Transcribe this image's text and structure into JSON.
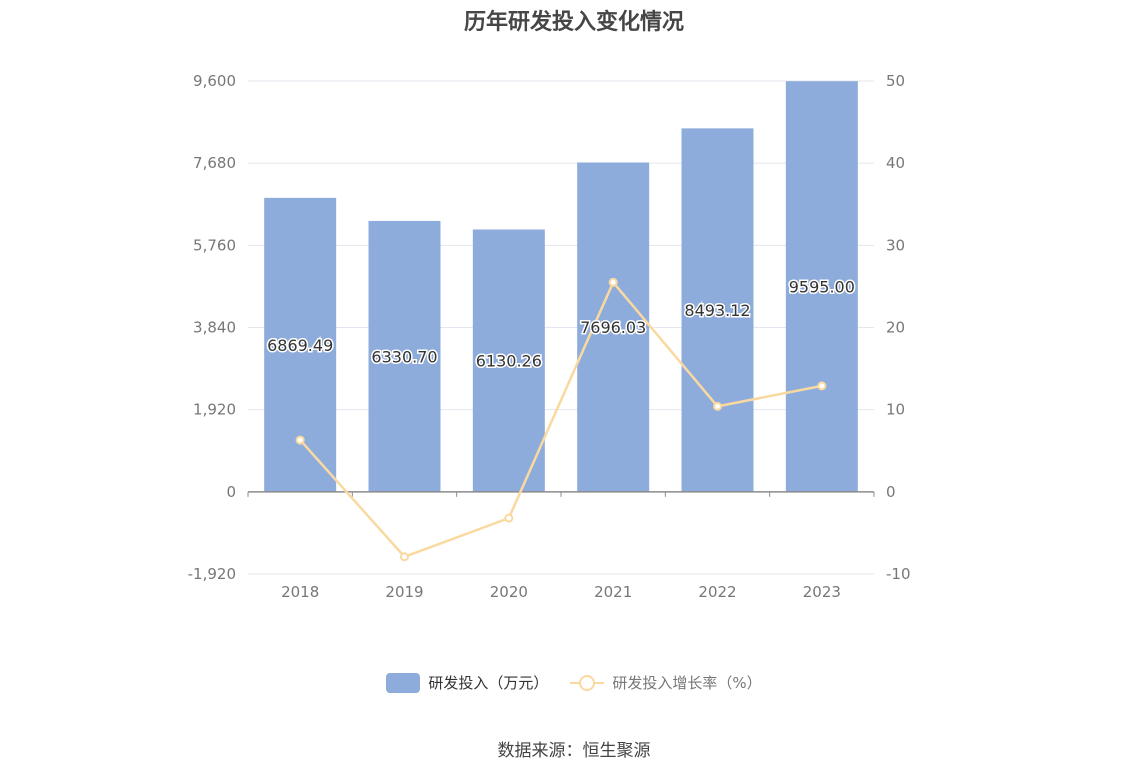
{
  "title": "历年研发投入变化情况",
  "source": "数据来源：恒生聚源",
  "colors": {
    "bar": "#8eacdb",
    "line": "#f9d9a0",
    "grid": "#e3e6ee",
    "axis": "#8c8c8c",
    "tick_text": "#777777"
  },
  "chart_data": {
    "type": "bar",
    "title": "历年研发投入变化情况",
    "categories": [
      "2018",
      "2019",
      "2020",
      "2021",
      "2022",
      "2023"
    ],
    "series": [
      {
        "name": "研发投入（万元）",
        "type": "bar",
        "axis": "left",
        "values": [
          6869.49,
          6330.7,
          6130.26,
          7696.03,
          8493.12,
          9595.0
        ],
        "labels": [
          "6869.49",
          "6330.70",
          "6130.26",
          "7696.03",
          "8493.12",
          "9595.00"
        ]
      },
      {
        "name": "研发投入增长率（%）",
        "type": "line",
        "axis": "right",
        "values": [
          6.3,
          -7.9,
          -3.2,
          25.5,
          10.4,
          12.9
        ]
      }
    ],
    "y_left": {
      "min": -1920,
      "max": 9600,
      "ticks": [
        -1920,
        0,
        1920,
        3840,
        5760,
        7680,
        9600
      ],
      "tick_labels": [
        "-1,920",
        "0",
        "1,920",
        "3,840",
        "5,760",
        "7,680",
        "9,600"
      ]
    },
    "y_right": {
      "min": -10,
      "max": 50,
      "ticks": [
        -10,
        0,
        10,
        20,
        30,
        40,
        50
      ],
      "tick_labels": [
        "-10",
        "0",
        "10",
        "20",
        "30",
        "40",
        "50"
      ]
    },
    "grid": true,
    "legend": "bottom"
  }
}
